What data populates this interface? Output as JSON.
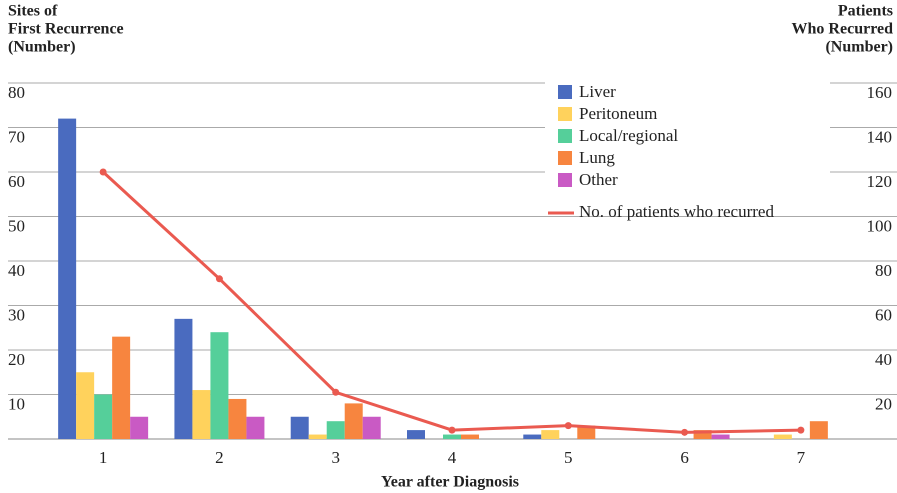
{
  "chart_data": {
    "type": "bar",
    "y_label": [
      "Sites of",
      "First Recurrence",
      "(Number)"
    ],
    "y2_label": [
      "Patients",
      "Who Recurred",
      "(Number)"
    ],
    "x_label": "Year after Diagnosis",
    "categories": [
      "1",
      "2",
      "3",
      "4",
      "5",
      "6",
      "7"
    ],
    "series": [
      {
        "name": "Liver",
        "color": "#4a6bbf",
        "values": [
          72,
          27,
          5,
          2,
          1,
          0,
          0
        ]
      },
      {
        "name": "Peritoneum",
        "color": "#ffd25c",
        "values": [
          15,
          11,
          1,
          0,
          2,
          0,
          1
        ]
      },
      {
        "name": "Local/regional",
        "color": "#55cf9a",
        "values": [
          10,
          24,
          4,
          1,
          0,
          0,
          0
        ]
      },
      {
        "name": "Lung",
        "color": "#f7853f",
        "values": [
          23,
          9,
          8,
          1,
          3,
          2,
          4
        ]
      },
      {
        "name": "Other",
        "color": "#c95ac4",
        "values": [
          5,
          5,
          5,
          0,
          0,
          1,
          0
        ]
      },
      {
        "name": "No. of patients who recurred",
        "color": "#ea5a50",
        "type": "line",
        "axis": "y2",
        "values": [
          120,
          72,
          21,
          4,
          6,
          3,
          4
        ]
      }
    ],
    "ylim": [
      0,
      80
    ],
    "yticks": [
      10,
      20,
      30,
      40,
      50,
      60,
      70,
      80
    ],
    "y2lim": [
      0,
      160
    ],
    "y2ticks": [
      20,
      40,
      60,
      80,
      100,
      120,
      140,
      160
    ],
    "grid": true
  }
}
